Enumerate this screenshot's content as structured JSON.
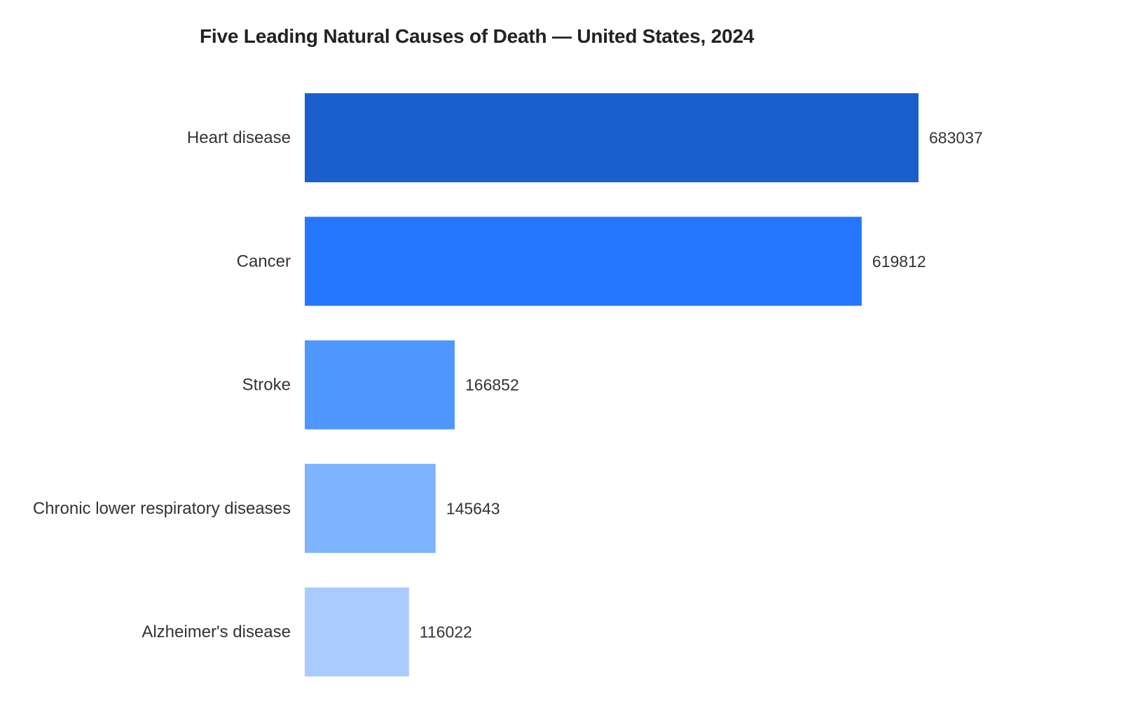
{
  "chart_data": {
    "type": "bar",
    "orientation": "horizontal",
    "title": "Five Leading Natural Causes of Death — United States, 2024",
    "xlabel": "",
    "ylabel": "",
    "grid": false,
    "legend": "none",
    "xlim": [
      0,
      683037
    ],
    "categories": [
      "Heart disease",
      "Cancer",
      "Stroke",
      "Chronic lower respiratory diseases",
      "Alzheimer's disease"
    ],
    "values": [
      683037,
      619812,
      166852,
      145643,
      116022
    ],
    "value_labels": [
      "683037",
      "619812",
      "166852",
      "145643",
      "116022"
    ],
    "colors": [
      "#1b5fcc",
      "#2677ff",
      "#5096ff",
      "#7db3ff",
      "#a9cbff"
    ]
  }
}
